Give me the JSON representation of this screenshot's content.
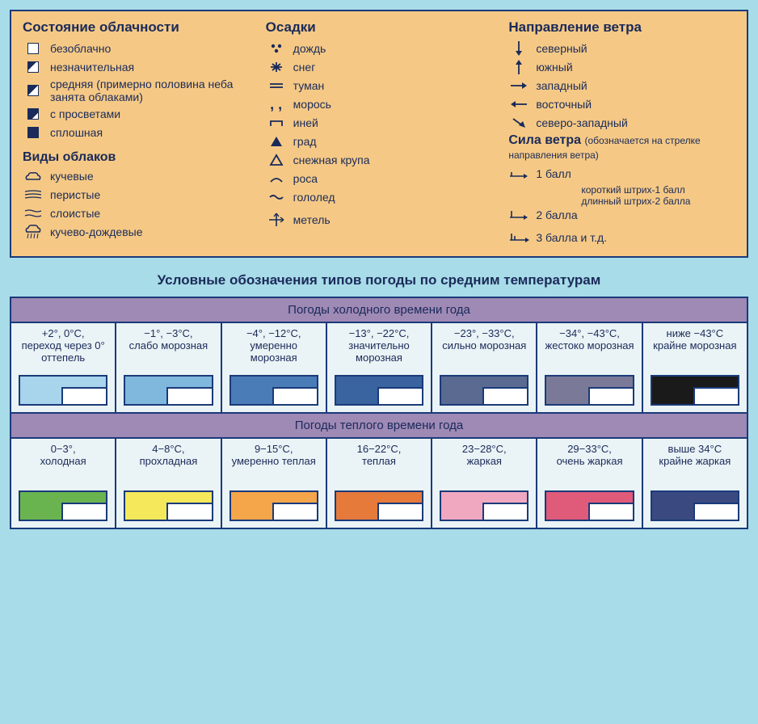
{
  "topPanel": {
    "cloudiness": {
      "title": "Состояние облачности",
      "items": [
        {
          "icon": "sq-clear",
          "label": "безоблачно"
        },
        {
          "icon": "sq-partial",
          "label": "незначительная"
        },
        {
          "icon": "sq-half",
          "label": "средняя (примерно половина неба занята облаками)"
        },
        {
          "icon": "sq-more",
          "label": "с просветами"
        },
        {
          "icon": "sq-full",
          "label": "сплошная"
        }
      ]
    },
    "cloudTypes": {
      "title": "Виды облаков",
      "items": [
        {
          "icon": "cloud-cumulus",
          "label": "кучевые"
        },
        {
          "icon": "cloud-cirrus",
          "label": "перистые"
        },
        {
          "icon": "cloud-stratus",
          "label": "слоистые"
        },
        {
          "icon": "cloud-nimbus",
          "label": "кучево-дождевые"
        }
      ]
    },
    "precipitation": {
      "title": "Осадки",
      "items": [
        {
          "icon": "rain",
          "label": "дождь"
        },
        {
          "icon": "snow",
          "label": "снег"
        },
        {
          "icon": "fog",
          "label": "туман"
        },
        {
          "icon": "drizzle",
          "label": "морось"
        },
        {
          "icon": "rime",
          "label": "иней"
        },
        {
          "icon": "hail",
          "label": "град"
        },
        {
          "icon": "graupel",
          "label": "снежная крупа"
        },
        {
          "icon": "dew",
          "label": "роса"
        },
        {
          "icon": "glaze",
          "label": "гололед"
        },
        {
          "icon": "blizzard",
          "label": "метель"
        }
      ]
    },
    "windDirection": {
      "title": "Направление ветра",
      "items": [
        {
          "icon": "arr-n",
          "label": "северный"
        },
        {
          "icon": "arr-s",
          "label": "южный"
        },
        {
          "icon": "arr-w",
          "label": "западный"
        },
        {
          "icon": "arr-e",
          "label": "восточный"
        },
        {
          "icon": "arr-nw",
          "label": "северо-западный"
        }
      ]
    },
    "windForce": {
      "title": "Сила ветра",
      "note": "(обозначается на стрелке направления ветра)",
      "items": [
        {
          "icon": "force-1",
          "label": "1 балл"
        },
        {
          "icon": "force-2",
          "label": "2 балла"
        },
        {
          "icon": "force-3",
          "label": "3 балла и т.д."
        }
      ],
      "subnote1": "короткий штрих-1 балл",
      "subnote2": "длинный штрих-2 балла"
    }
  },
  "chart": {
    "title": "Условные обозначения типов погоды по средним температурам",
    "coldSeason": {
      "header": "Погоды холодного времени года",
      "cells": [
        {
          "range": "+2°, 0°C,",
          "desc": "переход через 0° оттепель",
          "color": "#a8d4ec"
        },
        {
          "range": "−1°, −3°C,",
          "desc": "слабо морозная",
          "color": "#7fb8dc"
        },
        {
          "range": "−4°, −12°C,",
          "desc": "умеренно морозная",
          "color": "#4a7cb8"
        },
        {
          "range": "−13°, −22°C,",
          "desc": "значительно морозная",
          "color": "#3a64a0"
        },
        {
          "range": "−23°, −33°C,",
          "desc": "сильно морозная",
          "color": "#5a6a90"
        },
        {
          "range": "−34°, −43°C,",
          "desc": "жестоко морозная",
          "color": "#7a7a98"
        },
        {
          "range": "ниже −43°C",
          "desc": "крайне морозная",
          "color": "#1a1a1a"
        }
      ]
    },
    "warmSeason": {
      "header": "Погоды теплого времени года",
      "cells": [
        {
          "range": "0−3°,",
          "desc": "холодная",
          "color": "#6ab450"
        },
        {
          "range": "4−8°C,",
          "desc": "прохладная",
          "color": "#f5e85a"
        },
        {
          "range": "9−15°C,",
          "desc": "умеренно теплая",
          "color": "#f5a54a"
        },
        {
          "range": "16−22°C,",
          "desc": "теплая",
          "color": "#e57a3a"
        },
        {
          "range": "23−28°C,",
          "desc": "жаркая",
          "color": "#f0a8c0"
        },
        {
          "range": "29−33°C,",
          "desc": "очень жаркая",
          "color": "#e05a7a"
        },
        {
          "range": "выше 34°C",
          "desc": "крайне жаркая",
          "color": "#3a4a80"
        }
      ]
    }
  },
  "colors": {
    "pageBg": "#a8dce8",
    "panelTopBg": "#f5c985",
    "border": "#1a3a7a",
    "textDark": "#1a2a5a",
    "seasonHeaderBg": "#9f89b5",
    "cellBg": "#eaf3f5"
  }
}
